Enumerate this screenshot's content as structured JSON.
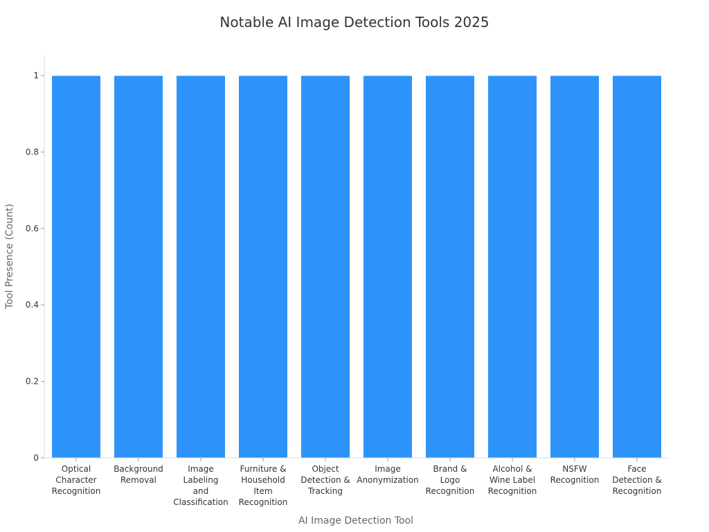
{
  "chart_data": {
    "type": "bar",
    "title": "Notable AI Image Detection Tools 2025",
    "xlabel": "AI Image Detection Tool",
    "ylabel": "Tool Presence (Count)",
    "ylim": [
      0,
      1
    ],
    "yticks": [
      0,
      0.2,
      0.4,
      0.6,
      0.8,
      1
    ],
    "ytick_labels": [
      "0",
      "0.2",
      "0.4",
      "0.6",
      "0.8",
      "1"
    ],
    "categories": [
      "Optical Character Recognition",
      "Background Removal",
      "Image Labeling and Classification",
      "Furniture & Household Item Recognition",
      "Object Detection & Tracking",
      "Image Anonymization",
      "Brand & Logo Recognition",
      "Alcohol & Wine Label Recognition",
      "NSFW Recognition",
      "Face Detection & Recognition"
    ],
    "category_label_lines": [
      [
        "Optical",
        "Character",
        "Recognition"
      ],
      [
        "Background",
        "Removal"
      ],
      [
        "Image",
        "Labeling",
        "and",
        "Classification"
      ],
      [
        "Furniture &",
        "Household",
        "Item",
        "Recognition"
      ],
      [
        "Object",
        "Detection &",
        "Tracking"
      ],
      [
        "Image",
        "Anonymization"
      ],
      [
        "Brand &",
        "Logo",
        "Recognition"
      ],
      [
        "Alcohol &",
        "Wine Label",
        "Recognition"
      ],
      [
        "NSFW",
        "Recognition"
      ],
      [
        "Face",
        "Detection &",
        "Recognition"
      ]
    ],
    "values": [
      1,
      1,
      1,
      1,
      1,
      1,
      1,
      1,
      1,
      1
    ],
    "bar_color": "#2e93f9",
    "grid": false,
    "legend": false
  }
}
